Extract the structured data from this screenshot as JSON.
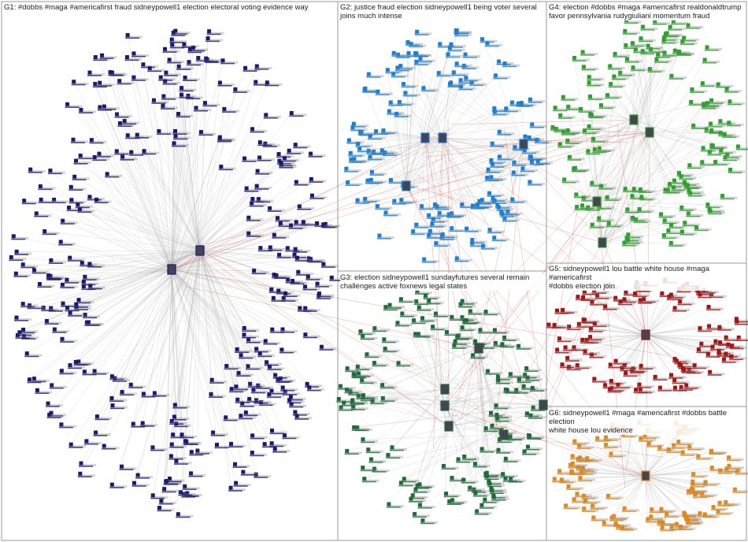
{
  "groups": [
    {
      "id": "G1",
      "label_line1": "G1: #dobbs #maga #americafirst fraud sidneypowell1 election electoral voting evidence way",
      "label_line2": "",
      "color": "#1a1a6e"
    },
    {
      "id": "G2",
      "label_line1": "G2: justice fraud election sidneypowell1 being voter several",
      "label_line2": "joins much intense",
      "color": "#1c7fd6"
    },
    {
      "id": "G4",
      "label_line1": "G4: election #dobbs #maga #americafirst realdonaldtrump",
      "label_line2": "favor pennsylvania rudygiuliani momentum fraud",
      "color": "#2ea02e"
    },
    {
      "id": "G3",
      "label_line1": "G3: election sidneypowell1 sundayfutures several remain",
      "label_line2": "challenges active foxnews legal states",
      "color": "#1f6b3a"
    },
    {
      "id": "G5",
      "label_line1": "G5: sidneypowell1 lou battle white house #maga #americafirst",
      "label_line2": "#dobbs election join",
      "color": "#a31515"
    },
    {
      "id": "G6",
      "label_line1": "G6: sidneypowell1 #maga #americafirst #dobbs battle election",
      "label_line2": "white house lou evidence",
      "color": "#e08a1e"
    }
  ],
  "colors": {
    "inter_group_edge": "#e06060",
    "intra_group_edge": "#b0b0b0",
    "panel_border": "#999999"
  }
}
